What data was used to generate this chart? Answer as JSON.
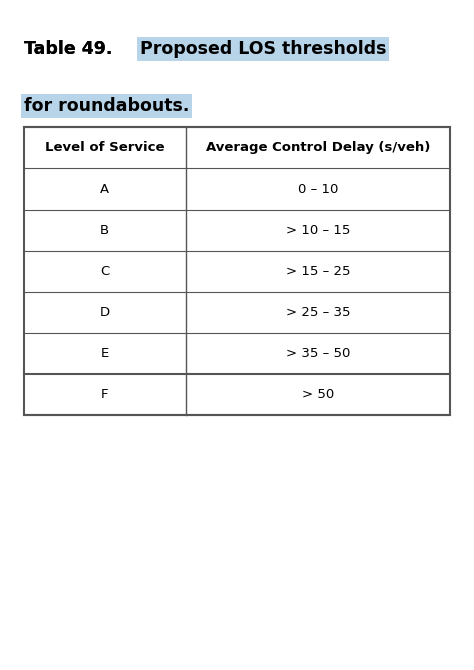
{
  "title_prefix": "Table 49. ",
  "title_highlighted": "Proposed LOS thresholds",
  "title_line2": "for roundabouts.",
  "highlight_color": "#b8d4e8",
  "col_headers": [
    "Level of Service",
    "Average Control Delay (s/veh)"
  ],
  "rows": [
    [
      "A",
      "0 – 10"
    ],
    [
      "B",
      "> 10 – 15"
    ],
    [
      "C",
      "> 15 – 25"
    ],
    [
      "D",
      "> 25 – 35"
    ],
    [
      "E",
      "> 35 – 50"
    ],
    [
      "F",
      "> 50"
    ]
  ],
  "bg_color": "#ffffff",
  "table_border_color": "#555555",
  "font_size_title": 12.5,
  "font_size_table": 9.5,
  "fig_width": 4.74,
  "fig_height": 6.7
}
